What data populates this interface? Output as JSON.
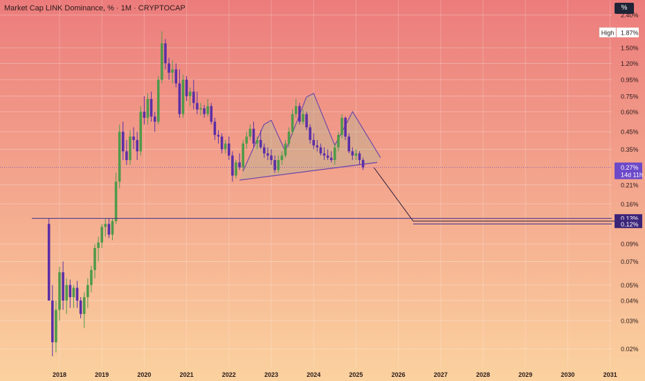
{
  "title": "Market Cap LINK Dominance, % · 1M · CRYPTOCAP",
  "unit_label": "%",
  "high_label": {
    "text": "High",
    "value": "1.87%",
    "price": 1.87
  },
  "current_label": {
    "value": "0.27%",
    "countdown": "14d 11h",
    "price": 0.27
  },
  "levels": [
    {
      "value": "0.13%",
      "price": 0.13
    },
    {
      "value": "0.12%",
      "price": 0.12
    }
  ],
  "colors": {
    "bg_top": "#ec7c7c",
    "bg_bottom": "#fbd29f",
    "up": "#4f9a4a",
    "down": "#5b2ea6",
    "pattern": "#6f4aa8",
    "level_badge": "#3a2478",
    "current_badge": "#6c49c9"
  },
  "chart_data": {
    "type": "candlestick",
    "y_scale": "log",
    "ylim": [
      0.017,
      2.75
    ],
    "y_ticks": [
      {
        "value": 2.4,
        "label": "2.40%"
      },
      {
        "value": 1.5,
        "label": "1.50%"
      },
      {
        "value": 1.2,
        "label": "1.20%"
      },
      {
        "value": 0.95,
        "label": "0.95%"
      },
      {
        "value": 0.75,
        "label": "0.75%"
      },
      {
        "value": 0.6,
        "label": "0.60%"
      },
      {
        "value": 0.45,
        "label": "0.45%"
      },
      {
        "value": 0.35,
        "label": "0.35%"
      },
      {
        "value": 0.21,
        "label": "0.21%"
      },
      {
        "value": 0.16,
        "label": "0.16%"
      },
      {
        "value": 0.09,
        "label": "0.09%"
      },
      {
        "value": 0.07,
        "label": "0.07%"
      },
      {
        "value": 0.05,
        "label": "0.05%"
      },
      {
        "value": 0.04,
        "label": "0.04%"
      },
      {
        "value": 0.03,
        "label": "0.03%"
      },
      {
        "value": 0.02,
        "label": "0.02%"
      }
    ],
    "x_ticks": [
      "2018",
      "2019",
      "2020",
      "2021",
      "2022",
      "2023",
      "2024",
      "2025",
      "2026",
      "2027",
      "2028",
      "2029",
      "2030",
      "2031"
    ],
    "start_year": 2017.75,
    "projection_path": [
      {
        "x": 2025.42,
        "y": 0.27
      },
      {
        "x": 2026.35,
        "y": 0.125
      },
      {
        "x": 2031.2,
        "y": 0.125
      }
    ],
    "head_shoulders": {
      "outline": [
        {
          "x": 2022.33,
          "y": 0.255
        },
        {
          "x": 2022.83,
          "y": 0.5
        },
        {
          "x": 2023.0,
          "y": 0.53
        },
        {
          "x": 2023.33,
          "y": 0.34
        },
        {
          "x": 2023.83,
          "y": 0.74
        },
        {
          "x": 2024.0,
          "y": 0.78
        },
        {
          "x": 2024.5,
          "y": 0.37
        },
        {
          "x": 2024.92,
          "y": 0.6
        },
        {
          "x": 2025.58,
          "y": 0.31
        }
      ],
      "neckline": [
        {
          "x": 2022.25,
          "y": 0.225
        },
        {
          "x": 2025.5,
          "y": 0.29
        }
      ]
    },
    "candles": [
      [
        0.12,
        0.13,
        0.04,
        0.04
      ],
      [
        0.04,
        0.05,
        0.018,
        0.022
      ],
      [
        0.022,
        0.04,
        0.019,
        0.035
      ],
      [
        0.035,
        0.065,
        0.03,
        0.06
      ],
      [
        0.06,
        0.07,
        0.035,
        0.04
      ],
      [
        0.04,
        0.055,
        0.033,
        0.05
      ],
      [
        0.05,
        0.054,
        0.036,
        0.042
      ],
      [
        0.042,
        0.05,
        0.036,
        0.048
      ],
      [
        0.048,
        0.053,
        0.036,
        0.04
      ],
      [
        0.04,
        0.042,
        0.031,
        0.033
      ],
      [
        0.033,
        0.045,
        0.027,
        0.042
      ],
      [
        0.042,
        0.055,
        0.036,
        0.05
      ],
      [
        0.05,
        0.066,
        0.045,
        0.062
      ],
      [
        0.062,
        0.09,
        0.055,
        0.085
      ],
      [
        0.085,
        0.1,
        0.07,
        0.092
      ],
      [
        0.092,
        0.12,
        0.085,
        0.115
      ],
      [
        0.115,
        0.13,
        0.1,
        0.12
      ],
      [
        0.12,
        0.13,
        0.098,
        0.103
      ],
      [
        0.103,
        0.13,
        0.095,
        0.125
      ],
      [
        0.125,
        0.25,
        0.12,
        0.22
      ],
      [
        0.22,
        0.5,
        0.2,
        0.45
      ],
      [
        0.45,
        0.52,
        0.3,
        0.34
      ],
      [
        0.34,
        0.4,
        0.28,
        0.3
      ],
      [
        0.3,
        0.46,
        0.28,
        0.42
      ],
      [
        0.42,
        0.48,
        0.35,
        0.4
      ],
      [
        0.4,
        0.45,
        0.3,
        0.34
      ],
      [
        0.34,
        0.65,
        0.32,
        0.6
      ],
      [
        0.6,
        0.75,
        0.5,
        0.55
      ],
      [
        0.55,
        0.78,
        0.5,
        0.72
      ],
      [
        0.72,
        0.8,
        0.52,
        0.56
      ],
      [
        0.56,
        0.6,
        0.45,
        0.52
      ],
      [
        0.52,
        1.0,
        0.5,
        0.95
      ],
      [
        0.95,
        1.9,
        0.9,
        1.6
      ],
      [
        1.6,
        1.7,
        1.1,
        1.2
      ],
      [
        1.2,
        1.3,
        0.95,
        1.05
      ],
      [
        1.05,
        1.25,
        0.9,
        1.1
      ],
      [
        1.1,
        1.2,
        0.85,
        0.9
      ],
      [
        0.9,
        1.1,
        0.55,
        0.58
      ],
      [
        0.58,
        1.02,
        0.55,
        0.95
      ],
      [
        0.95,
        1.0,
        0.7,
        0.75
      ],
      [
        0.75,
        0.85,
        0.65,
        0.8
      ],
      [
        0.8,
        0.95,
        0.62,
        0.68
      ],
      [
        0.68,
        0.8,
        0.58,
        0.62
      ],
      [
        0.62,
        0.68,
        0.57,
        0.63
      ],
      [
        0.63,
        0.66,
        0.55,
        0.58
      ],
      [
        0.58,
        0.72,
        0.56,
        0.65
      ],
      [
        0.65,
        0.68,
        0.5,
        0.52
      ],
      [
        0.52,
        0.55,
        0.4,
        0.43
      ],
      [
        0.43,
        0.46,
        0.38,
        0.42
      ],
      [
        0.42,
        0.44,
        0.33,
        0.35
      ],
      [
        0.35,
        0.4,
        0.33,
        0.38
      ],
      [
        0.38,
        0.42,
        0.3,
        0.32
      ],
      [
        0.32,
        0.34,
        0.22,
        0.24
      ],
      [
        0.24,
        0.3,
        0.23,
        0.29
      ],
      [
        0.29,
        0.33,
        0.26,
        0.27
      ],
      [
        0.27,
        0.4,
        0.26,
        0.38
      ],
      [
        0.38,
        0.45,
        0.35,
        0.42
      ],
      [
        0.42,
        0.5,
        0.4,
        0.47
      ],
      [
        0.47,
        0.52,
        0.36,
        0.38
      ],
      [
        0.38,
        0.42,
        0.35,
        0.4
      ],
      [
        0.4,
        0.46,
        0.35,
        0.36
      ],
      [
        0.36,
        0.38,
        0.31,
        0.33
      ],
      [
        0.33,
        0.36,
        0.3,
        0.32
      ],
      [
        0.32,
        0.35,
        0.28,
        0.3
      ],
      [
        0.3,
        0.32,
        0.25,
        0.26
      ],
      [
        0.26,
        0.32,
        0.25,
        0.3
      ],
      [
        0.3,
        0.34,
        0.28,
        0.32
      ],
      [
        0.32,
        0.4,
        0.31,
        0.38
      ],
      [
        0.38,
        0.48,
        0.36,
        0.45
      ],
      [
        0.45,
        0.62,
        0.43,
        0.58
      ],
      [
        0.58,
        0.72,
        0.55,
        0.65
      ],
      [
        0.65,
        0.68,
        0.5,
        0.52
      ],
      [
        0.52,
        0.62,
        0.5,
        0.58
      ],
      [
        0.58,
        0.6,
        0.46,
        0.48
      ],
      [
        0.48,
        0.5,
        0.38,
        0.4
      ],
      [
        0.4,
        0.44,
        0.35,
        0.37
      ],
      [
        0.37,
        0.4,
        0.34,
        0.36
      ],
      [
        0.36,
        0.38,
        0.32,
        0.33
      ],
      [
        0.33,
        0.36,
        0.3,
        0.32
      ],
      [
        0.32,
        0.35,
        0.3,
        0.31
      ],
      [
        0.31,
        0.34,
        0.29,
        0.3
      ],
      [
        0.3,
        0.38,
        0.28,
        0.36
      ],
      [
        0.36,
        0.45,
        0.34,
        0.43
      ],
      [
        0.43,
        0.58,
        0.41,
        0.55
      ],
      [
        0.55,
        0.56,
        0.4,
        0.42
      ],
      [
        0.42,
        0.44,
        0.33,
        0.34
      ],
      [
        0.34,
        0.36,
        0.3,
        0.32
      ],
      [
        0.32,
        0.35,
        0.3,
        0.33
      ],
      [
        0.33,
        0.34,
        0.28,
        0.3
      ],
      [
        0.3,
        0.31,
        0.26,
        0.27
      ]
    ]
  }
}
